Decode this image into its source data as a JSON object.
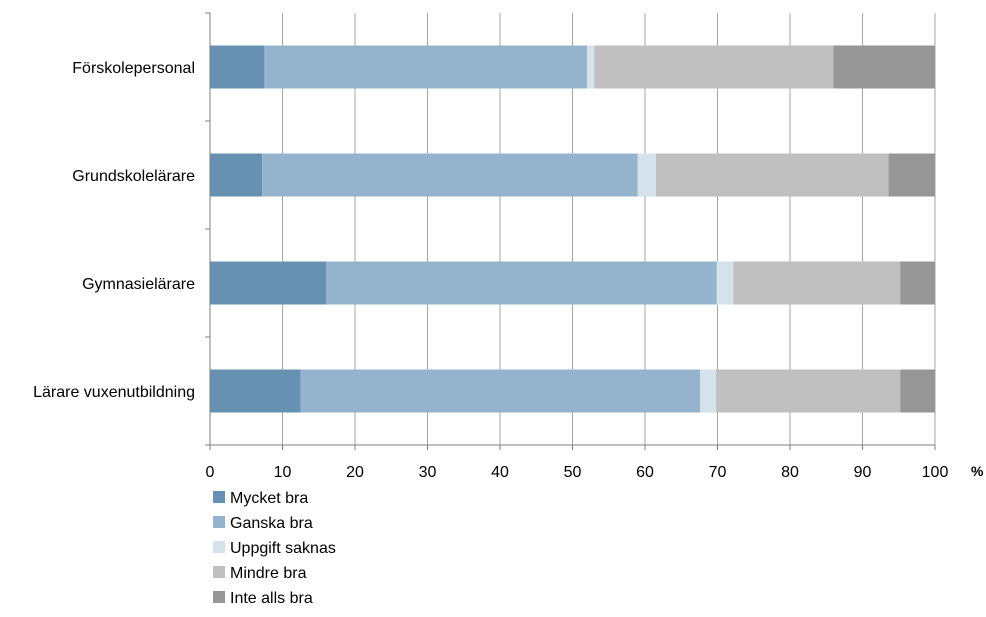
{
  "chart_data": {
    "type": "bar",
    "orientation": "horizontal",
    "stacked": true,
    "categories": [
      "Förskolepersonal",
      "Grundskolelärare",
      "Gymnasielärare",
      "Lärare vuxenutbildning"
    ],
    "series": [
      {
        "name": "Mycket bra",
        "color": "#6691b3",
        "values": [
          7.5,
          7.2,
          16.0,
          12.5
        ]
      },
      {
        "name": "Ganska bra",
        "color": "#95b3cc",
        "values": [
          44.5,
          51.8,
          53.9,
          55.1
        ]
      },
      {
        "name": "Uppgift saknas",
        "color": "#d5e1eb",
        "values": [
          1.0,
          2.5,
          2.3,
          2.2
        ]
      },
      {
        "name": "Mindre bra",
        "color": "#bfbfbf",
        "values": [
          33.0,
          32.1,
          23.0,
          25.4
        ]
      },
      {
        "name": "Inte alls bra",
        "color": "#969696",
        "values": [
          14.0,
          6.4,
          4.8,
          4.8
        ]
      }
    ],
    "xlim": [
      0,
      100
    ],
    "xticks": [
      "0",
      "10",
      "20",
      "30",
      "40",
      "50",
      "60",
      "70",
      "80",
      "90",
      "100"
    ],
    "xunit": "%",
    "grid": "vertical",
    "legend": "bottom-left"
  }
}
